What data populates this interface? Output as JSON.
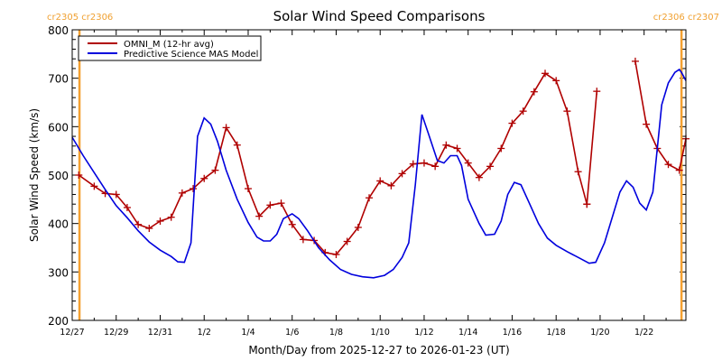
{
  "chart_data": {
    "type": "line",
    "title": "Solar Wind Speed Comparisons",
    "xlabel": "Month/Day from 2025-12-27 to 2026-01-23 (UT)",
    "ylabel": "Solar Wind Speed (km/s)",
    "ylim": [
      200,
      800
    ],
    "xlim_days": [
      0,
      27.9
    ],
    "yticks": [
      200,
      300,
      400,
      500,
      600,
      700,
      800
    ],
    "xticks": [
      {
        "day": 0,
        "label": "12/27"
      },
      {
        "day": 2,
        "label": "12/29"
      },
      {
        "day": 4,
        "label": "12/31"
      },
      {
        "day": 6,
        "label": "1/2"
      },
      {
        "day": 8,
        "label": "1/4"
      },
      {
        "day": 10,
        "label": "1/6"
      },
      {
        "day": 12,
        "label": "1/8"
      },
      {
        "day": 14,
        "label": "1/10"
      },
      {
        "day": 16,
        "label": "1/12"
      },
      {
        "day": 18,
        "label": "1/14"
      },
      {
        "day": 20,
        "label": "1/16"
      },
      {
        "day": 22,
        "label": "1/18"
      },
      {
        "day": 24,
        "label": "1/20"
      },
      {
        "day": 26,
        "label": "1/22"
      }
    ],
    "grid": false,
    "legend_position": "top-left",
    "carrington_markers": [
      {
        "day": 0.33,
        "labels": [
          "cr2305",
          "cr2306"
        ],
        "side": "left"
      },
      {
        "day": 27.7,
        "labels": [
          "cr2306",
          "cr2307"
        ],
        "side": "right"
      }
    ],
    "series": [
      {
        "name": "OMNI_M (12-hr avg)",
        "color": "#b00000",
        "markers": true,
        "segments": [
          [
            [
              0.3,
              500
            ],
            [
              1.0,
              477
            ],
            [
              1.5,
              462
            ],
            [
              2.0,
              460
            ],
            [
              2.5,
              433
            ],
            [
              3.0,
              398
            ],
            [
              3.5,
              390
            ],
            [
              4.0,
              405
            ],
            [
              4.5,
              413
            ],
            [
              5.0,
              463
            ],
            [
              5.5,
              472
            ],
            [
              6.0,
              493
            ],
            [
              6.5,
              510
            ],
            [
              7.0,
              598
            ],
            [
              7.5,
              562
            ],
            [
              8.0,
              472
            ],
            [
              8.5,
              415
            ],
            [
              9.0,
              438
            ],
            [
              9.5,
              442
            ],
            [
              10.0,
              398
            ],
            [
              10.5,
              367
            ],
            [
              11.0,
              365
            ],
            [
              11.5,
              340
            ],
            [
              12.0,
              336
            ],
            [
              12.5,
              363
            ],
            [
              13.0,
              392
            ],
            [
              13.5,
              453
            ],
            [
              14.0,
              488
            ],
            [
              14.5,
              478
            ],
            [
              15.0,
              503
            ],
            [
              15.5,
              523
            ],
            [
              16.0,
              525
            ],
            [
              16.5,
              518
            ],
            [
              17.0,
              562
            ],
            [
              17.5,
              555
            ],
            [
              18.0,
              525
            ],
            [
              18.5,
              495
            ],
            [
              19.0,
              518
            ],
            [
              19.5,
              555
            ],
            [
              20.0,
              607
            ],
            [
              20.5,
              632
            ],
            [
              21.0,
              672
            ],
            [
              21.5,
              710
            ],
            [
              22.0,
              695
            ],
            [
              22.5,
              632
            ],
            [
              23.0,
              507
            ],
            [
              23.4,
              440
            ]
          ],
          [
            [
              23.4,
              440
            ],
            [
              23.85,
              673
            ]
          ],
          [
            [
              25.6,
              735
            ],
            [
              26.1,
              605
            ],
            [
              26.6,
              555
            ],
            [
              27.1,
              522
            ],
            [
              27.6,
              510
            ],
            [
              27.9,
              575
            ]
          ]
        ]
      },
      {
        "name": "Predictive Science MAS Model",
        "color": "#0000dd",
        "markers": false,
        "segments": [
          [
            [
              0.0,
              578
            ],
            [
              0.5,
              540
            ],
            [
              1.0,
              505
            ],
            [
              1.5,
              470
            ],
            [
              2.0,
              437
            ],
            [
              2.5,
              412
            ],
            [
              3.0,
              385
            ],
            [
              3.5,
              362
            ],
            [
              4.0,
              345
            ],
            [
              4.5,
              332
            ],
            [
              4.8,
              321
            ],
            [
              5.1,
              320
            ],
            [
              5.4,
              360
            ],
            [
              5.7,
              580
            ],
            [
              6.0,
              618
            ],
            [
              6.3,
              605
            ],
            [
              6.6,
              570
            ],
            [
              7.0,
              510
            ],
            [
              7.5,
              450
            ],
            [
              8.0,
              402
            ],
            [
              8.4,
              372
            ],
            [
              8.7,
              364
            ],
            [
              9.0,
              364
            ],
            [
              9.3,
              378
            ],
            [
              9.6,
              410
            ],
            [
              10.0,
              420
            ],
            [
              10.3,
              410
            ],
            [
              10.7,
              385
            ],
            [
              11.2,
              350
            ],
            [
              11.7,
              325
            ],
            [
              12.2,
              305
            ],
            [
              12.7,
              295
            ],
            [
              13.2,
              290
            ],
            [
              13.7,
              288
            ],
            [
              14.2,
              293
            ],
            [
              14.6,
              305
            ],
            [
              15.0,
              330
            ],
            [
              15.3,
              360
            ],
            [
              15.6,
              480
            ],
            [
              15.9,
              625
            ],
            [
              16.2,
              585
            ],
            [
              16.6,
              530
            ],
            [
              16.9,
              525
            ],
            [
              17.2,
              540
            ],
            [
              17.5,
              540
            ],
            [
              17.7,
              520
            ],
            [
              18.0,
              450
            ],
            [
              18.5,
              400
            ],
            [
              18.8,
              376
            ],
            [
              19.2,
              378
            ],
            [
              19.5,
              405
            ],
            [
              19.8,
              460
            ],
            [
              20.1,
              485
            ],
            [
              20.4,
              480
            ],
            [
              20.8,
              440
            ],
            [
              21.2,
              400
            ],
            [
              21.6,
              370
            ],
            [
              22.0,
              355
            ],
            [
              22.5,
              342
            ],
            [
              23.0,
              330
            ],
            [
              23.5,
              318
            ],
            [
              23.8,
              320
            ],
            [
              24.2,
              360
            ],
            [
              24.6,
              420
            ],
            [
              24.9,
              465
            ],
            [
              25.2,
              488
            ],
            [
              25.5,
              475
            ],
            [
              25.8,
              442
            ],
            [
              26.1,
              428
            ],
            [
              26.4,
              465
            ],
            [
              26.8,
              645
            ],
            [
              27.1,
              690
            ],
            [
              27.4,
              712
            ],
            [
              27.6,
              718
            ],
            [
              27.7,
              712
            ],
            [
              27.9,
              695
            ]
          ]
        ]
      }
    ]
  }
}
